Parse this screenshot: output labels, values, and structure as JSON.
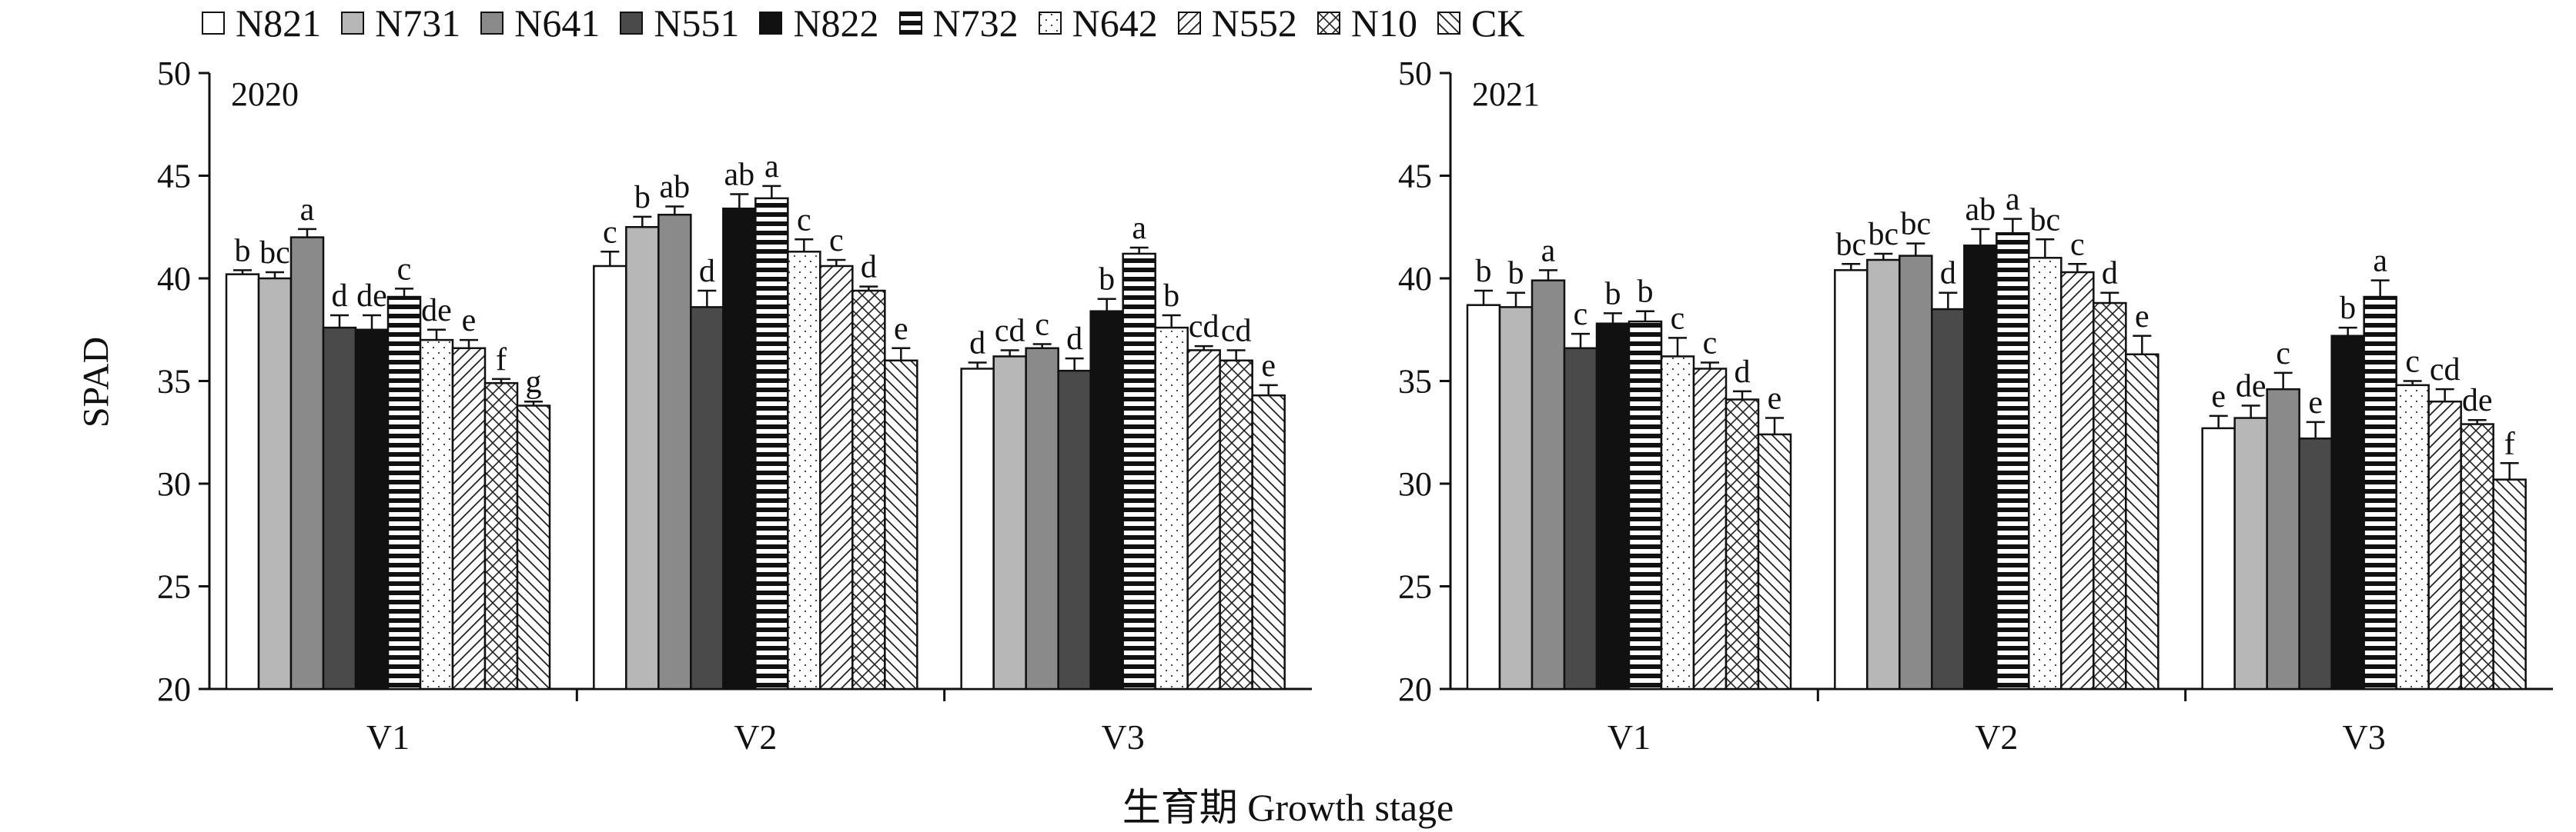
{
  "legend": [
    {
      "name": "N821",
      "pattern": "white"
    },
    {
      "name": "N731",
      "pattern": "lightgray"
    },
    {
      "name": "N641",
      "pattern": "gray"
    },
    {
      "name": "N551",
      "pattern": "darkgray"
    },
    {
      "name": "N822",
      "pattern": "black"
    },
    {
      "name": "N732",
      "pattern": "hstripe"
    },
    {
      "name": "N642",
      "pattern": "dots"
    },
    {
      "name": "N552",
      "pattern": "diag"
    },
    {
      "name": "N10",
      "pattern": "crosshatch"
    },
    {
      "name": "CK",
      "pattern": "backdiag"
    }
  ],
  "x_title": "生育期 Growth stage",
  "y_title": "SPAD",
  "colors": {
    "white": "#ffffff",
    "lightgray": "#b7b7b7",
    "gray": "#8a8a8a",
    "darkgray": "#4a4a4a",
    "black": "#111111"
  },
  "chart_data": [
    {
      "type": "bar",
      "panel_label": "2020",
      "categories": [
        "V1",
        "V2",
        "V3"
      ],
      "ylim": [
        20,
        50
      ],
      "yticks": [
        20,
        25,
        30,
        35,
        40,
        45,
        50
      ],
      "ylabel": "SPAD",
      "series": [
        {
          "name": "N821",
          "values": [
            40.2,
            40.6,
            35.6
          ],
          "errors": [
            0.2,
            0.7,
            0.3
          ],
          "letters": [
            "b",
            "c",
            "d"
          ]
        },
        {
          "name": "N731",
          "values": [
            40.0,
            42.5,
            36.2
          ],
          "errors": [
            0.3,
            0.5,
            0.3
          ],
          "letters": [
            "bc",
            "b",
            "cd"
          ]
        },
        {
          "name": "N641",
          "values": [
            42.0,
            43.1,
            36.6
          ],
          "errors": [
            0.4,
            0.4,
            0.2
          ],
          "letters": [
            "a",
            "ab",
            "c"
          ]
        },
        {
          "name": "N551",
          "values": [
            37.6,
            38.6,
            35.5
          ],
          "errors": [
            0.6,
            0.8,
            0.6
          ],
          "letters": [
            "d",
            "d",
            "d"
          ]
        },
        {
          "name": "N822",
          "values": [
            37.5,
            43.4,
            38.4
          ],
          "errors": [
            0.7,
            0.7,
            0.6
          ],
          "letters": [
            "de",
            "ab",
            "b"
          ]
        },
        {
          "name": "N732",
          "values": [
            39.1,
            43.9,
            41.2
          ],
          "errors": [
            0.4,
            0.6,
            0.3
          ],
          "letters": [
            "c",
            "a",
            "a"
          ]
        },
        {
          "name": "N642",
          "values": [
            37.0,
            41.3,
            37.6
          ],
          "errors": [
            0.5,
            0.6,
            0.6
          ],
          "letters": [
            "de",
            "c",
            "b"
          ]
        },
        {
          "name": "N552",
          "values": [
            36.6,
            40.6,
            36.5
          ],
          "errors": [
            0.4,
            0.3,
            0.2
          ],
          "letters": [
            "e",
            "c",
            "cd"
          ]
        },
        {
          "name": "N10",
          "values": [
            34.9,
            39.4,
            36.0
          ],
          "errors": [
            0.2,
            0.2,
            0.5
          ],
          "letters": [
            "f",
            "d",
            "cd"
          ]
        },
        {
          "name": "CK",
          "values": [
            33.8,
            36.0,
            34.3
          ],
          "errors": [
            0.2,
            0.6,
            0.5
          ],
          "letters": [
            "g",
            "e",
            "e"
          ]
        }
      ]
    },
    {
      "type": "bar",
      "panel_label": "2021",
      "categories": [
        "V1",
        "V2",
        "V3"
      ],
      "ylim": [
        20,
        50
      ],
      "yticks": [
        20,
        25,
        30,
        35,
        40,
        45,
        50
      ],
      "ylabel": "",
      "series": [
        {
          "name": "N821",
          "values": [
            38.7,
            40.4,
            32.7
          ],
          "errors": [
            0.7,
            0.3,
            0.6
          ],
          "letters": [
            "b",
            "bc",
            "e"
          ]
        },
        {
          "name": "N731",
          "values": [
            38.6,
            40.9,
            33.2
          ],
          "errors": [
            0.7,
            0.3,
            0.6
          ],
          "letters": [
            "b",
            "bc",
            "de"
          ]
        },
        {
          "name": "N641",
          "values": [
            39.9,
            41.1,
            34.6
          ],
          "errors": [
            0.5,
            0.6,
            0.8
          ],
          "letters": [
            "a",
            "bc",
            "c"
          ]
        },
        {
          "name": "N551",
          "values": [
            36.6,
            38.5,
            32.2
          ],
          "errors": [
            0.7,
            0.8,
            0.8
          ],
          "letters": [
            "c",
            "d",
            "e"
          ]
        },
        {
          "name": "N822",
          "values": [
            37.8,
            41.6,
            37.2
          ],
          "errors": [
            0.5,
            0.8,
            0.4
          ],
          "letters": [
            "b",
            "ab",
            "b"
          ]
        },
        {
          "name": "N732",
          "values": [
            37.9,
            42.2,
            39.1
          ],
          "errors": [
            0.5,
            0.7,
            0.8
          ],
          "letters": [
            "b",
            "a",
            "a"
          ]
        },
        {
          "name": "N642",
          "values": [
            36.2,
            41.0,
            34.8
          ],
          "errors": [
            0.9,
            0.9,
            0.2
          ],
          "letters": [
            "c",
            "bc",
            "c"
          ]
        },
        {
          "name": "N552",
          "values": [
            35.6,
            40.3,
            34.0
          ],
          "errors": [
            0.3,
            0.4,
            0.6
          ],
          "letters": [
            "c",
            "c",
            "cd"
          ]
        },
        {
          "name": "N10",
          "values": [
            34.1,
            38.8,
            32.9
          ],
          "errors": [
            0.4,
            0.5,
            0.2
          ],
          "letters": [
            "d",
            "d",
            "de"
          ]
        },
        {
          "name": "CK",
          "values": [
            32.4,
            36.3,
            30.2
          ],
          "errors": [
            0.8,
            0.9,
            0.8
          ],
          "letters": [
            "e",
            "e",
            "f"
          ]
        }
      ]
    }
  ]
}
